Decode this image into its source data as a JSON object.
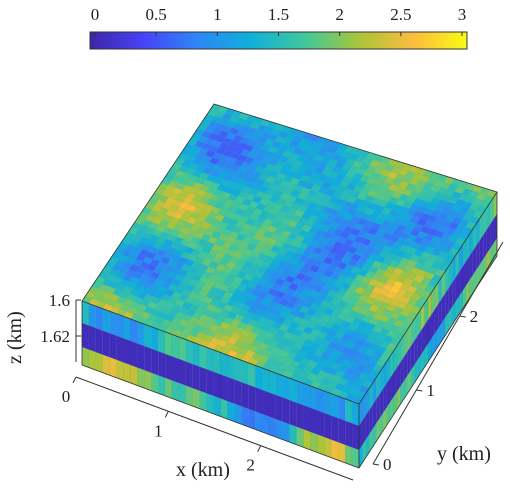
{
  "chart_data": {
    "type": "heatmap",
    "title": "",
    "colorbar": {
      "ticks": [
        "0",
        "0.5",
        "1",
        "1.5",
        "2",
        "2.5",
        "3"
      ],
      "range": [
        0,
        3
      ],
      "colormap": "parula"
    },
    "axes": {
      "x": {
        "label": "x (km)",
        "ticks": [
          "0",
          "1",
          "2"
        ],
        "range": [
          0,
          3
        ]
      },
      "y": {
        "label": "y (km)",
        "ticks": [
          "0",
          "1",
          "2"
        ],
        "range": [
          0,
          3
        ]
      },
      "z": {
        "label": "z (km)",
        "ticks": [
          "1.6",
          "1.62"
        ],
        "direction": "down"
      }
    },
    "layers": [
      {
        "name": "upper reservoir layer",
        "value_range": [
          0.6,
          3.0
        ]
      },
      {
        "name": "low-value middle layer",
        "value": 0.1
      },
      {
        "name": "lower reservoir layer",
        "value_range": [
          0.6,
          3.0
        ]
      }
    ],
    "grid": {
      "cells_x": 40,
      "cells_y": 40,
      "smooth_field": true
    },
    "colors": {
      "colormap_stops": [
        "#3e26a8",
        "#4743f9",
        "#2e87f7",
        "#0eb0d9",
        "#41c89a",
        "#a9c538",
        "#fbbc3c",
        "#f9fb15"
      ]
    }
  }
}
